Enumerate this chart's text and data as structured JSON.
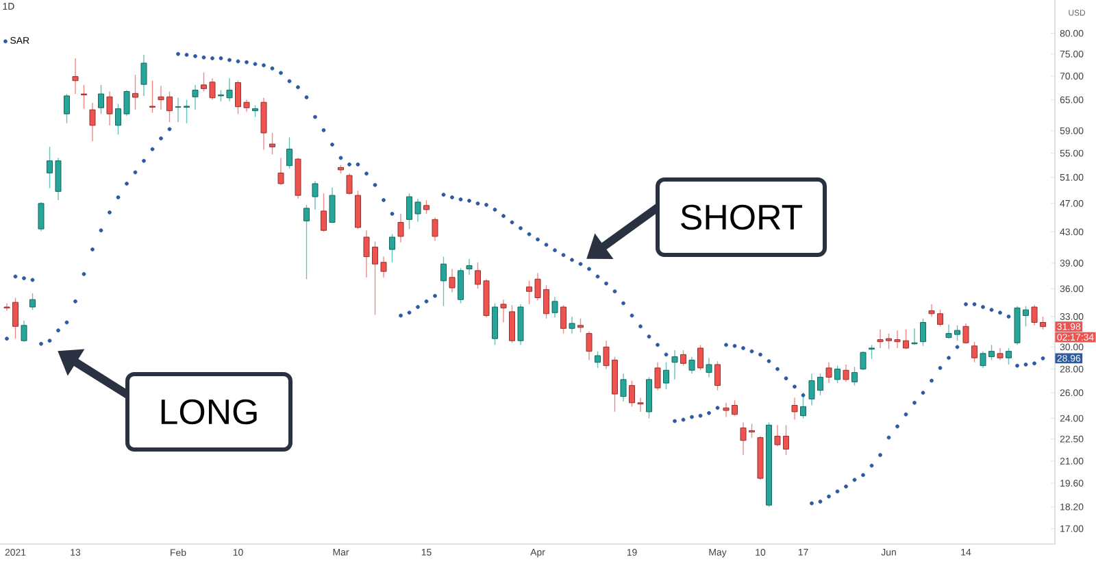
{
  "chart_data": {
    "type": "candlestick",
    "title": "1D",
    "ylabel": "USD",
    "categories": [
      null,
      "2021",
      null,
      null,
      null,
      null,
      null,
      null,
      "13",
      null,
      null,
      null,
      null,
      null,
      null,
      null,
      null,
      null,
      null,
      null,
      "Feb",
      null,
      null,
      null,
      null,
      null,
      null,
      "10",
      null,
      null,
      null,
      null,
      null,
      null,
      null,
      null,
      null,
      null,
      null,
      "Mar",
      null,
      null,
      null,
      null,
      null,
      null,
      null,
      null,
      null,
      "15",
      null,
      null,
      null,
      null,
      null,
      null,
      null,
      null,
      null,
      null,
      null,
      null,
      "Apr",
      null,
      null,
      null,
      null,
      null,
      null,
      null,
      null,
      null,
      null,
      "19",
      null,
      null,
      null,
      null,
      null,
      null,
      null,
      null,
      null,
      "May",
      null,
      null,
      null,
      null,
      "10",
      null,
      null,
      null,
      null,
      "17",
      null,
      null,
      null,
      null,
      null,
      null,
      null,
      null,
      null,
      "Jun",
      null,
      null,
      null,
      null,
      null,
      null,
      null,
      null,
      "14",
      null,
      null,
      null,
      null,
      null,
      null,
      null,
      null,
      null
    ],
    "series": [
      {
        "colors": [
          "#ef5350",
          "#ef5350",
          "#26a69a",
          "#26a69a",
          "#26a69a",
          "#26a69a",
          "#26a69a",
          "#26a69a",
          "#ef5350",
          "#ef5350",
          "#ef5350",
          "#26a69a",
          "#ef5350",
          "#26a69a",
          "#26a69a",
          "#ef5350",
          "#26a69a",
          "#ef5350",
          "#ef5350",
          "#ef5350",
          "#26a69a",
          "#26a69a",
          "#26a69a",
          "#ef5350",
          "#ef5350",
          "#26a69a",
          "#26a69a",
          "#ef5350",
          "#ef5350",
          "#26a69a",
          "#ef5350",
          "#ef5350",
          "#ef5350",
          "#26a69a",
          "#ef5350",
          "#26a69a",
          "#26a69a",
          "#ef5350",
          "#26a69a",
          "#ef5350",
          "#ef5350",
          "#ef5350",
          "#ef5350",
          "#ef5350",
          "#ef5350",
          "#26a69a",
          "#ef5350",
          "#26a69a",
          "#26a69a",
          "#ef5350",
          "#ef5350",
          "#26a69a",
          "#ef5350",
          "#26a69a",
          "#26a69a",
          "#ef5350",
          "#ef5350",
          "#26a69a",
          "#ef5350",
          "#ef5350",
          "#26a69a",
          "#ef5350",
          "#ef5350",
          "#ef5350",
          "#26a69a",
          "#ef5350",
          "#26a69a",
          "#ef5350",
          "#ef5350",
          "#26a69a",
          "#ef5350",
          "#ef5350",
          "#26a69a",
          "#ef5350",
          "#ef5350",
          "#26a69a",
          "#ef5350",
          "#26a69a",
          "#26a69a",
          "#ef5350",
          "#26a69a",
          "#ef5350",
          "#26a69a",
          "#ef5350",
          "#ef5350",
          "#ef5350",
          "#ef5350",
          "#ef5350",
          "#ef5350",
          "#26a69a",
          "#ef5350",
          "#ef5350",
          "#ef5350",
          "#26a69a",
          "#26a69a",
          "#26a69a",
          "#ef5350",
          "#26a69a",
          "#ef5350",
          "#26a69a",
          "#26a69a",
          "#26a69a",
          "#ef5350",
          "#ef5350",
          "#ef5350",
          "#ef5350",
          "#26a69a",
          "#26a69a",
          "#ef5350",
          "#ef5350",
          "#26a69a",
          "#26a69a",
          "#ef5350",
          "#ef5350",
          "#26a69a",
          "#26a69a",
          "#ef5350",
          "#26a69a",
          "#26a69a",
          "#26a69a",
          "#ef5350",
          "#ef5350"
        ],
        "ohlc": [
          [
            34.0,
            34.4,
            33.6,
            33.9
          ],
          [
            34.5,
            35.0,
            30.8,
            32.0
          ],
          [
            30.6,
            32.6,
            30.5,
            32.1
          ],
          [
            34.0,
            35.5,
            33.7,
            34.8
          ],
          [
            43.4,
            47.2,
            43.1,
            47.0
          ],
          [
            51.7,
            56.1,
            49.3,
            53.7
          ],
          [
            48.8,
            54.2,
            47.5,
            53.7
          ],
          [
            62.2,
            66.2,
            60.4,
            65.8
          ],
          [
            69.9,
            74.0,
            66.2,
            69.0
          ],
          [
            66.2,
            68.1,
            63.2,
            66.0
          ],
          [
            63.0,
            64.4,
            57.1,
            60.0
          ],
          [
            63.4,
            68.1,
            62.2,
            66.2
          ],
          [
            65.6,
            66.7,
            60.0,
            62.2
          ],
          [
            60.0,
            64.2,
            58.3,
            63.2
          ],
          [
            62.2,
            67.0,
            61.8,
            66.7
          ],
          [
            66.3,
            70.3,
            63.0,
            65.5
          ],
          [
            68.2,
            74.8,
            65.8,
            72.9
          ],
          [
            63.7,
            69.0,
            62.4,
            63.5
          ],
          [
            65.6,
            67.9,
            63.0,
            65.0
          ],
          [
            65.6,
            66.7,
            60.6,
            62.8
          ],
          [
            63.5,
            65.4,
            60.6,
            63.6
          ],
          [
            63.5,
            65.0,
            60.4,
            63.7
          ],
          [
            65.6,
            68.1,
            63.0,
            67.0
          ],
          [
            68.1,
            70.8,
            66.7,
            67.3
          ],
          [
            68.7,
            69.5,
            65.0,
            65.4
          ],
          [
            65.8,
            67.0,
            64.7,
            66.0
          ],
          [
            65.4,
            69.5,
            64.7,
            67.0
          ],
          [
            68.6,
            69.0,
            62.2,
            63.6
          ],
          [
            64.5,
            65.0,
            62.6,
            63.4
          ],
          [
            62.8,
            63.9,
            61.6,
            63.2
          ],
          [
            64.5,
            65.4,
            55.6,
            58.6
          ],
          [
            56.6,
            58.6,
            54.8,
            56.1
          ],
          [
            51.7,
            54.2,
            49.8,
            50.0
          ],
          [
            52.9,
            57.8,
            52.4,
            55.7
          ],
          [
            54.0,
            54.2,
            47.7,
            48.2
          ],
          [
            44.5,
            46.8,
            37.1,
            46.3
          ],
          [
            48.0,
            50.4,
            46.1,
            50.0
          ],
          [
            45.9,
            48.5,
            43.0,
            43.2
          ],
          [
            44.3,
            49.4,
            44.2,
            48.2
          ],
          [
            52.6,
            53.0,
            51.6,
            52.2
          ],
          [
            51.3,
            51.6,
            48.3,
            48.5
          ],
          [
            48.2,
            48.9,
            43.4,
            43.6
          ],
          [
            42.3,
            43.2,
            37.3,
            39.8
          ],
          [
            41.0,
            41.7,
            33.2,
            38.9
          ],
          [
            39.1,
            39.8,
            37.3,
            38.0
          ],
          [
            40.7,
            42.7,
            39.1,
            42.3
          ],
          [
            44.3,
            45.5,
            41.6,
            42.4
          ],
          [
            44.7,
            48.5,
            43.4,
            48.0
          ],
          [
            45.5,
            47.7,
            44.4,
            47.2
          ],
          [
            46.7,
            47.5,
            45.5,
            46.1
          ],
          [
            44.7,
            45.0,
            41.8,
            42.4
          ],
          [
            36.9,
            39.8,
            34.1,
            38.9
          ],
          [
            37.3,
            38.3,
            35.6,
            36.1
          ],
          [
            34.8,
            38.4,
            34.4,
            38.1
          ],
          [
            38.3,
            39.5,
            37.6,
            38.7
          ],
          [
            38.1,
            39.1,
            36.0,
            36.5
          ],
          [
            36.9,
            37.1,
            32.9,
            33.1
          ],
          [
            30.8,
            34.4,
            30.2,
            34.0
          ],
          [
            34.3,
            34.8,
            32.4,
            33.9
          ],
          [
            33.5,
            34.2,
            30.4,
            30.6
          ],
          [
            30.6,
            34.3,
            30.2,
            34.0
          ],
          [
            36.2,
            36.9,
            34.3,
            35.7
          ],
          [
            37.1,
            37.8,
            34.7,
            35.0
          ],
          [
            35.9,
            36.4,
            32.8,
            33.3
          ],
          [
            33.4,
            35.1,
            32.9,
            34.6
          ],
          [
            34.0,
            34.2,
            31.3,
            31.8
          ],
          [
            31.8,
            33.0,
            31.3,
            32.3
          ],
          [
            32.1,
            32.8,
            31.4,
            31.9
          ],
          [
            31.3,
            31.5,
            28.8,
            29.6
          ],
          [
            28.6,
            29.6,
            28.1,
            29.2
          ],
          [
            30.0,
            30.6,
            28.0,
            28.3
          ],
          [
            28.8,
            29.1,
            24.5,
            25.9
          ],
          [
            25.7,
            27.6,
            25.3,
            27.1
          ],
          [
            26.6,
            27.0,
            24.9,
            25.2
          ],
          [
            25.2,
            25.6,
            24.5,
            25.1
          ],
          [
            24.5,
            27.3,
            24.0,
            27.1
          ],
          [
            28.1,
            28.6,
            26.2,
            26.4
          ],
          [
            26.8,
            28.6,
            26.3,
            27.9
          ],
          [
            28.6,
            29.7,
            27.1,
            29.1
          ],
          [
            29.3,
            29.7,
            28.3,
            28.5
          ],
          [
            27.9,
            29.1,
            27.6,
            28.8
          ],
          [
            29.9,
            30.2,
            27.9,
            28.1
          ],
          [
            27.7,
            29.0,
            27.3,
            28.4
          ],
          [
            28.4,
            28.7,
            26.2,
            26.6
          ],
          [
            24.8,
            25.2,
            24.1,
            24.6
          ],
          [
            25.0,
            25.4,
            24.2,
            24.3
          ],
          [
            23.3,
            23.7,
            21.4,
            22.4
          ],
          [
            23.1,
            23.6,
            22.6,
            23.0
          ],
          [
            22.6,
            22.7,
            19.8,
            19.9
          ],
          [
            18.3,
            23.7,
            18.2,
            23.5
          ],
          [
            22.7,
            23.5,
            22.0,
            22.1
          ],
          [
            22.7,
            23.5,
            21.4,
            21.8
          ],
          [
            25.0,
            25.6,
            23.9,
            24.5
          ],
          [
            24.2,
            26.0,
            24.0,
            24.9
          ],
          [
            25.5,
            27.6,
            25.0,
            27.0
          ],
          [
            26.2,
            27.6,
            25.8,
            27.3
          ],
          [
            28.1,
            28.6,
            26.8,
            27.3
          ],
          [
            27.1,
            28.3,
            26.8,
            28.0
          ],
          [
            27.9,
            28.4,
            26.9,
            27.1
          ],
          [
            26.9,
            28.2,
            26.6,
            27.7
          ],
          [
            28.0,
            29.6,
            27.9,
            29.5
          ],
          [
            29.8,
            30.2,
            28.9,
            29.9
          ],
          [
            30.7,
            31.7,
            29.9,
            30.5
          ],
          [
            30.8,
            31.3,
            29.8,
            30.6
          ],
          [
            30.7,
            31.6,
            29.9,
            30.5
          ],
          [
            30.6,
            31.7,
            29.8,
            29.9
          ],
          [
            30.3,
            31.8,
            30.2,
            30.4
          ],
          [
            30.5,
            32.8,
            30.1,
            32.4
          ],
          [
            33.6,
            34.3,
            33.0,
            33.3
          ],
          [
            33.3,
            33.7,
            32.0,
            32.2
          ],
          [
            30.9,
            32.2,
            30.8,
            31.3
          ],
          [
            31.2,
            32.1,
            30.6,
            31.6
          ],
          [
            32.0,
            32.3,
            30.3,
            30.4
          ],
          [
            30.1,
            30.5,
            28.6,
            29.0
          ],
          [
            28.3,
            29.6,
            28.1,
            29.4
          ],
          [
            29.1,
            30.2,
            28.8,
            29.6
          ],
          [
            29.4,
            29.9,
            28.8,
            29.0
          ],
          [
            29.0,
            29.9,
            28.4,
            29.6
          ],
          [
            30.4,
            34.1,
            30.2,
            33.9
          ],
          [
            33.1,
            34.1,
            32.0,
            33.7
          ],
          [
            34.0,
            34.2,
            32.1,
            32.4
          ],
          [
            32.4,
            33.0,
            31.7,
            31.98
          ]
        ]
      },
      {
        "type": "scatter",
        "name": "SAR",
        "color": "#2b5aa0",
        "marker": "circle",
        "values": [
          30.8,
          37.4,
          37.2,
          37.0,
          30.3,
          30.6,
          31.6,
          32.4,
          34.6,
          37.7,
          40.7,
          43.2,
          45.7,
          47.9,
          50.0,
          51.8,
          53.7,
          55.7,
          57.6,
          59.3,
          75.0,
          74.8,
          74.5,
          74.2,
          74.0,
          74.0,
          73.6,
          73.3,
          73.1,
          72.7,
          72.4,
          71.7,
          70.7,
          68.9,
          67.6,
          65.5,
          61.6,
          59.1,
          56.5,
          54.2,
          53.1,
          53.1,
          51.6,
          49.8,
          47.5,
          45.5,
          33.1,
          33.4,
          34.0,
          34.6,
          35.2,
          48.3,
          47.9,
          47.6,
          47.4,
          47.0,
          46.8,
          46.1,
          45.2,
          44.3,
          43.5,
          42.7,
          42.0,
          41.3,
          40.6,
          40.0,
          39.4,
          38.9,
          38.3,
          37.4,
          36.6,
          35.7,
          34.4,
          33.1,
          32.0,
          31.0,
          30.2,
          29.3,
          23.8,
          23.9,
          24.1,
          24.2,
          24.4,
          24.8,
          30.2,
          30.1,
          29.9,
          29.6,
          29.3,
          28.7,
          28.0,
          27.2,
          26.5,
          25.8,
          18.4,
          18.5,
          18.8,
          19.1,
          19.4,
          19.8,
          20.1,
          20.7,
          21.4,
          22.6,
          23.4,
          24.3,
          25.2,
          26.0,
          27.0,
          28.1,
          29.0,
          30.0,
          34.3,
          34.3,
          34.0,
          33.7,
          33.4,
          33.0,
          28.3,
          28.4,
          28.5,
          28.96
        ]
      }
    ],
    "log": "y",
    "ylim": [
      16.2,
      88.8
    ],
    "yticks": [
      {
        "value": 17,
        "label": "17.00"
      },
      {
        "value": 18.2,
        "label": "18.20"
      },
      {
        "value": 19.6,
        "label": "19.60"
      },
      {
        "value": 21,
        "label": "21.00"
      },
      {
        "value": 22.5,
        "label": "22.50"
      },
      {
        "value": 24,
        "label": "24.00"
      },
      {
        "value": 26,
        "label": "26.00"
      },
      {
        "value": 28,
        "label": "28.00"
      },
      {
        "value": 30,
        "label": "30.00"
      },
      {
        "value": 33,
        "label": "33.00"
      },
      {
        "value": 36,
        "label": "36.00"
      },
      {
        "value": 39,
        "label": "39.00"
      },
      {
        "value": 43,
        "label": "43.00"
      },
      {
        "value": 47,
        "label": "47.00"
      },
      {
        "value": 51,
        "label": "51.00"
      },
      {
        "value": 55,
        "label": "55.00"
      },
      {
        "value": 59,
        "label": "59.00"
      },
      {
        "value": 65,
        "label": "65.00"
      },
      {
        "value": 70,
        "label": "70.00"
      },
      {
        "value": 75,
        "label": "75.00"
      },
      {
        "value": 80,
        "label": "80.00"
      }
    ],
    "legend": "top left",
    "annotations": [
      "LONG",
      "SHORT",
      {
        "text": "31.98",
        "y": 31.98
      },
      "02:17:34",
      {
        "text": "28.96",
        "y": 28.96
      }
    ]
  }
}
